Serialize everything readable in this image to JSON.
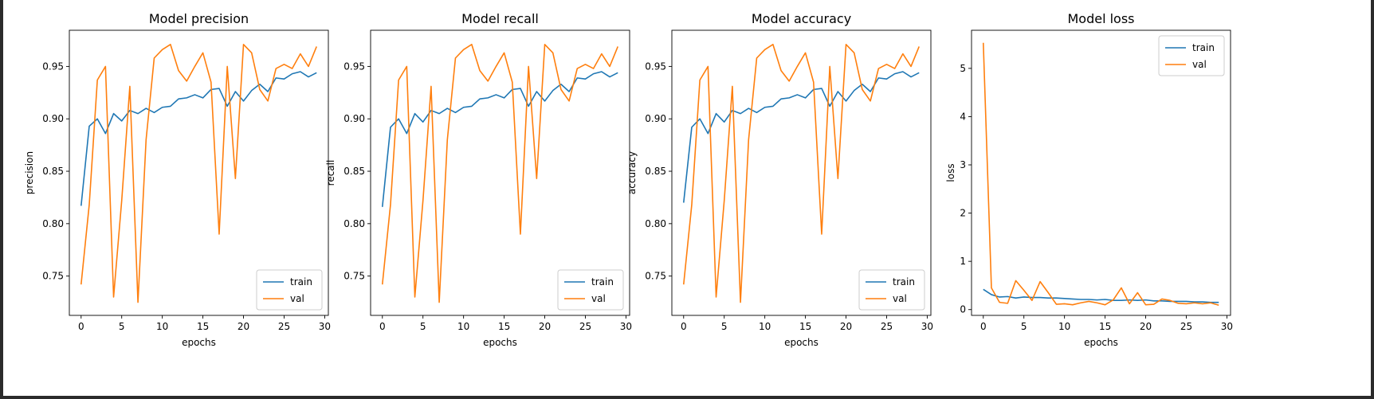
{
  "chart_data": [
    {
      "type": "line",
      "title": "Model precision",
      "xlabel": "epochs",
      "ylabel": "precision",
      "xlim": [
        -1.45,
        30.45
      ],
      "ylim": [
        0.7125,
        0.9845
      ],
      "xticks": [
        0,
        5,
        10,
        15,
        20,
        25,
        30
      ],
      "xtick_labels": [
        "0",
        "5",
        "10",
        "15",
        "20",
        "25",
        "30"
      ],
      "yticks": [
        0.75,
        0.8,
        0.85,
        0.9,
        0.95
      ],
      "ytick_labels": [
        "0.75",
        "0.80",
        "0.85",
        "0.90",
        "0.95"
      ],
      "legend": "bottom-right",
      "grid": false,
      "x": [
        0,
        1,
        2,
        3,
        4,
        5,
        6,
        7,
        8,
        9,
        10,
        11,
        12,
        13,
        14,
        15,
        16,
        17,
        18,
        19,
        20,
        21,
        22,
        23,
        24,
        25,
        26,
        27,
        28,
        29
      ],
      "series": [
        {
          "name": "train",
          "color": "#1f77b4",
          "values": [
            0.817,
            0.893,
            0.9,
            0.886,
            0.905,
            0.898,
            0.908,
            0.905,
            0.91,
            0.906,
            0.911,
            0.912,
            0.919,
            0.92,
            0.923,
            0.92,
            0.928,
            0.929,
            0.912,
            0.926,
            0.917,
            0.927,
            0.933,
            0.926,
            0.939,
            0.938,
            0.943,
            0.945,
            0.94,
            0.944
          ]
        },
        {
          "name": "val",
          "color": "#ff7f0e",
          "values": [
            0.742,
            0.818,
            0.937,
            0.95,
            0.73,
            0.822,
            0.931,
            0.725,
            0.88,
            0.958,
            0.966,
            0.971,
            0.946,
            0.936,
            0.95,
            0.963,
            0.935,
            0.79,
            0.95,
            0.843,
            0.971,
            0.963,
            0.928,
            0.917,
            0.948,
            0.952,
            0.948,
            0.962,
            0.95,
            0.969
          ]
        }
      ]
    },
    {
      "type": "line",
      "title": "Model recall",
      "xlabel": "epochs",
      "ylabel": "recall",
      "xlim": [
        -1.45,
        30.45
      ],
      "ylim": [
        0.7125,
        0.9845
      ],
      "xticks": [
        0,
        5,
        10,
        15,
        20,
        25,
        30
      ],
      "xtick_labels": [
        "0",
        "5",
        "10",
        "15",
        "20",
        "25",
        "30"
      ],
      "yticks": [
        0.75,
        0.8,
        0.85,
        0.9,
        0.95
      ],
      "ytick_labels": [
        "0.75",
        "0.80",
        "0.85",
        "0.90",
        "0.95"
      ],
      "legend": "bottom-right",
      "grid": false,
      "x": [
        0,
        1,
        2,
        3,
        4,
        5,
        6,
        7,
        8,
        9,
        10,
        11,
        12,
        13,
        14,
        15,
        16,
        17,
        18,
        19,
        20,
        21,
        22,
        23,
        24,
        25,
        26,
        27,
        28,
        29
      ],
      "series": [
        {
          "name": "train",
          "color": "#1f77b4",
          "values": [
            0.816,
            0.892,
            0.9,
            0.886,
            0.905,
            0.897,
            0.908,
            0.905,
            0.91,
            0.906,
            0.911,
            0.912,
            0.919,
            0.92,
            0.923,
            0.92,
            0.928,
            0.929,
            0.912,
            0.926,
            0.917,
            0.927,
            0.933,
            0.926,
            0.939,
            0.938,
            0.943,
            0.945,
            0.94,
            0.944
          ]
        },
        {
          "name": "val",
          "color": "#ff7f0e",
          "values": [
            0.742,
            0.818,
            0.937,
            0.95,
            0.73,
            0.822,
            0.931,
            0.725,
            0.88,
            0.958,
            0.966,
            0.971,
            0.946,
            0.936,
            0.95,
            0.963,
            0.935,
            0.79,
            0.95,
            0.843,
            0.971,
            0.963,
            0.928,
            0.917,
            0.948,
            0.952,
            0.948,
            0.962,
            0.95,
            0.969
          ]
        }
      ]
    },
    {
      "type": "line",
      "title": "Model accuracy",
      "xlabel": "epochs",
      "ylabel": "accuracy",
      "xlim": [
        -1.45,
        30.45
      ],
      "ylim": [
        0.7125,
        0.9845
      ],
      "xticks": [
        0,
        5,
        10,
        15,
        20,
        25,
        30
      ],
      "xtick_labels": [
        "0",
        "5",
        "10",
        "15",
        "20",
        "25",
        "30"
      ],
      "yticks": [
        0.75,
        0.8,
        0.85,
        0.9,
        0.95
      ],
      "ytick_labels": [
        "0.75",
        "0.80",
        "0.85",
        "0.90",
        "0.95"
      ],
      "legend": "bottom-right",
      "grid": false,
      "x": [
        0,
        1,
        2,
        3,
        4,
        5,
        6,
        7,
        8,
        9,
        10,
        11,
        12,
        13,
        14,
        15,
        16,
        17,
        18,
        19,
        20,
        21,
        22,
        23,
        24,
        25,
        26,
        27,
        28,
        29
      ],
      "series": [
        {
          "name": "train",
          "color": "#1f77b4",
          "values": [
            0.82,
            0.892,
            0.9,
            0.886,
            0.905,
            0.897,
            0.908,
            0.905,
            0.91,
            0.906,
            0.911,
            0.912,
            0.919,
            0.92,
            0.923,
            0.92,
            0.928,
            0.929,
            0.912,
            0.926,
            0.917,
            0.927,
            0.933,
            0.926,
            0.939,
            0.938,
            0.943,
            0.945,
            0.94,
            0.944
          ]
        },
        {
          "name": "val",
          "color": "#ff7f0e",
          "values": [
            0.742,
            0.818,
            0.937,
            0.95,
            0.73,
            0.822,
            0.931,
            0.725,
            0.88,
            0.958,
            0.966,
            0.971,
            0.946,
            0.936,
            0.95,
            0.963,
            0.935,
            0.79,
            0.95,
            0.843,
            0.971,
            0.963,
            0.928,
            0.917,
            0.948,
            0.952,
            0.948,
            0.962,
            0.95,
            0.969
          ]
        }
      ]
    },
    {
      "type": "line",
      "title": "Model loss",
      "xlabel": "epochs",
      "ylabel": "loss",
      "xlim": [
        -1.45,
        30.45
      ],
      "ylim": [
        -0.12,
        5.79
      ],
      "xticks": [
        0,
        5,
        10,
        15,
        20,
        25,
        30
      ],
      "xtick_labels": [
        "0",
        "5",
        "10",
        "15",
        "20",
        "25",
        "30"
      ],
      "yticks": [
        0,
        1,
        2,
        3,
        4,
        5
      ],
      "ytick_labels": [
        "0",
        "1",
        "2",
        "3",
        "4",
        "5"
      ],
      "legend": "top-right",
      "grid": false,
      "x": [
        0,
        1,
        2,
        3,
        4,
        5,
        6,
        7,
        8,
        9,
        10,
        11,
        12,
        13,
        14,
        15,
        16,
        17,
        18,
        19,
        20,
        21,
        22,
        23,
        24,
        25,
        26,
        27,
        28,
        29
      ],
      "series": [
        {
          "name": "train",
          "color": "#1f77b4",
          "values": [
            0.42,
            0.31,
            0.26,
            0.27,
            0.24,
            0.26,
            0.25,
            0.25,
            0.24,
            0.24,
            0.23,
            0.22,
            0.21,
            0.21,
            0.2,
            0.21,
            0.19,
            0.19,
            0.2,
            0.19,
            0.2,
            0.18,
            0.18,
            0.17,
            0.17,
            0.17,
            0.16,
            0.16,
            0.15,
            0.15
          ]
        },
        {
          "name": "val",
          "color": "#ff7f0e",
          "values": [
            5.53,
            0.45,
            0.15,
            0.13,
            0.6,
            0.4,
            0.19,
            0.58,
            0.35,
            0.11,
            0.12,
            0.1,
            0.14,
            0.17,
            0.14,
            0.1,
            0.2,
            0.45,
            0.12,
            0.35,
            0.1,
            0.11,
            0.22,
            0.19,
            0.13,
            0.12,
            0.14,
            0.12,
            0.14,
            0.09
          ]
        }
      ]
    }
  ]
}
